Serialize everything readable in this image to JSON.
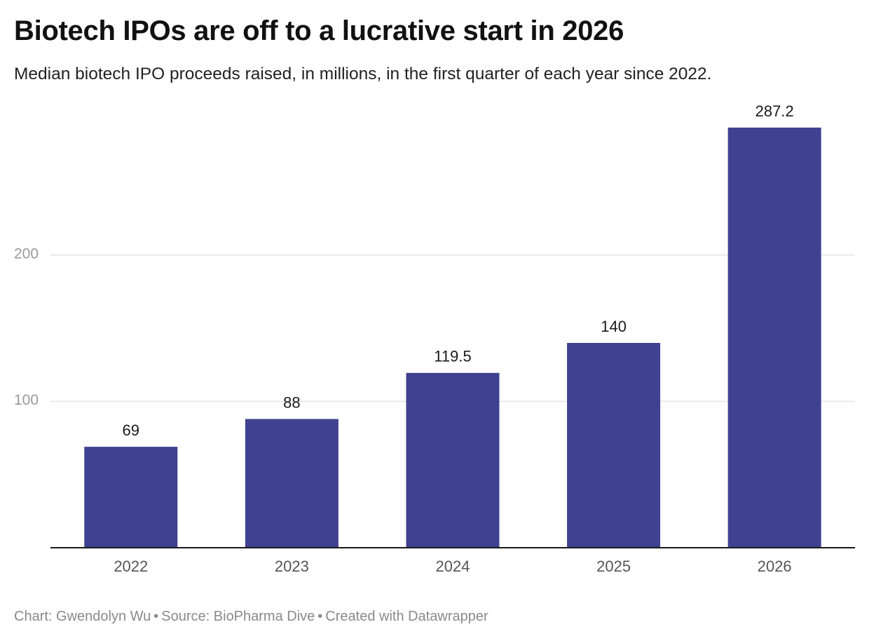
{
  "chart_data": {
    "type": "bar",
    "title": "Biotech IPOs are off to a lucrative start in 2026",
    "subtitle": "Median biotech IPO proceeds raised, in millions, in the first quarter of each year since 2022.",
    "categories": [
      "2022",
      "2023",
      "2024",
      "2025",
      "2026"
    ],
    "values": [
      69,
      88,
      119.5,
      140,
      287.2
    ],
    "value_labels": [
      "69",
      "88",
      "119.5",
      "140",
      "287.2"
    ],
    "y_ticks": [
      100,
      200
    ],
    "ylim": [
      0,
      300
    ],
    "grid": true,
    "bar_color": "#404190",
    "xlabel": "",
    "ylabel": ""
  },
  "footer": {
    "chart_credit": "Chart: Gwendolyn Wu",
    "source": "Source: BioPharma Dive",
    "created_with": "Created with Datawrapper",
    "separator": "•"
  }
}
